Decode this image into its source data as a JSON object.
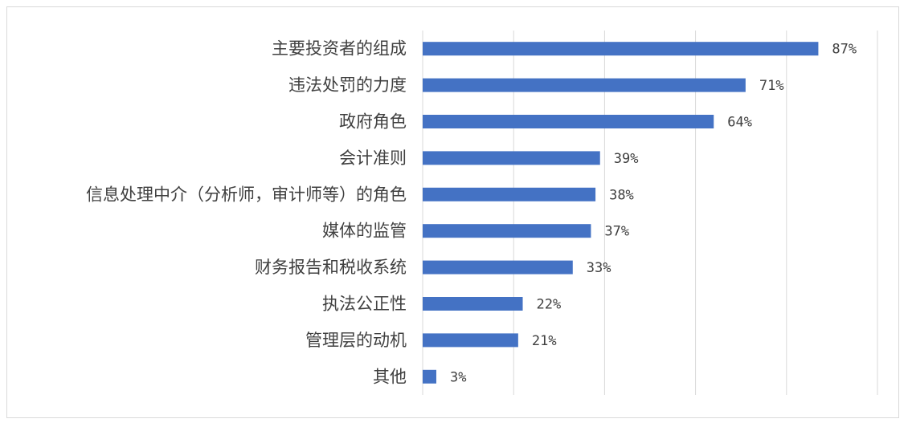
{
  "chart_data": {
    "type": "bar",
    "orientation": "horizontal",
    "categories": [
      "主要投资者的组成",
      "违法处罚的力度",
      "政府角色",
      "会计准则",
      "信息处理中介（分析师，审计师等）的角色",
      "媒体的监管",
      "财务报告和税收系统",
      "执法公正性",
      "管理层的动机",
      "其他"
    ],
    "values": [
      87,
      71,
      64,
      39,
      38,
      37,
      33,
      22,
      21,
      3
    ],
    "value_labels": [
      "87%",
      "71%",
      "64%",
      "39%",
      "38%",
      "37%",
      "33%",
      "22%",
      "21%",
      "3%"
    ],
    "unit": "%",
    "xlim": [
      0,
      100
    ],
    "grid": "vertical",
    "legend": "none",
    "colors": {
      "bar": "#4472C4",
      "grid": "#d9d9d9",
      "text": "#404040"
    }
  }
}
